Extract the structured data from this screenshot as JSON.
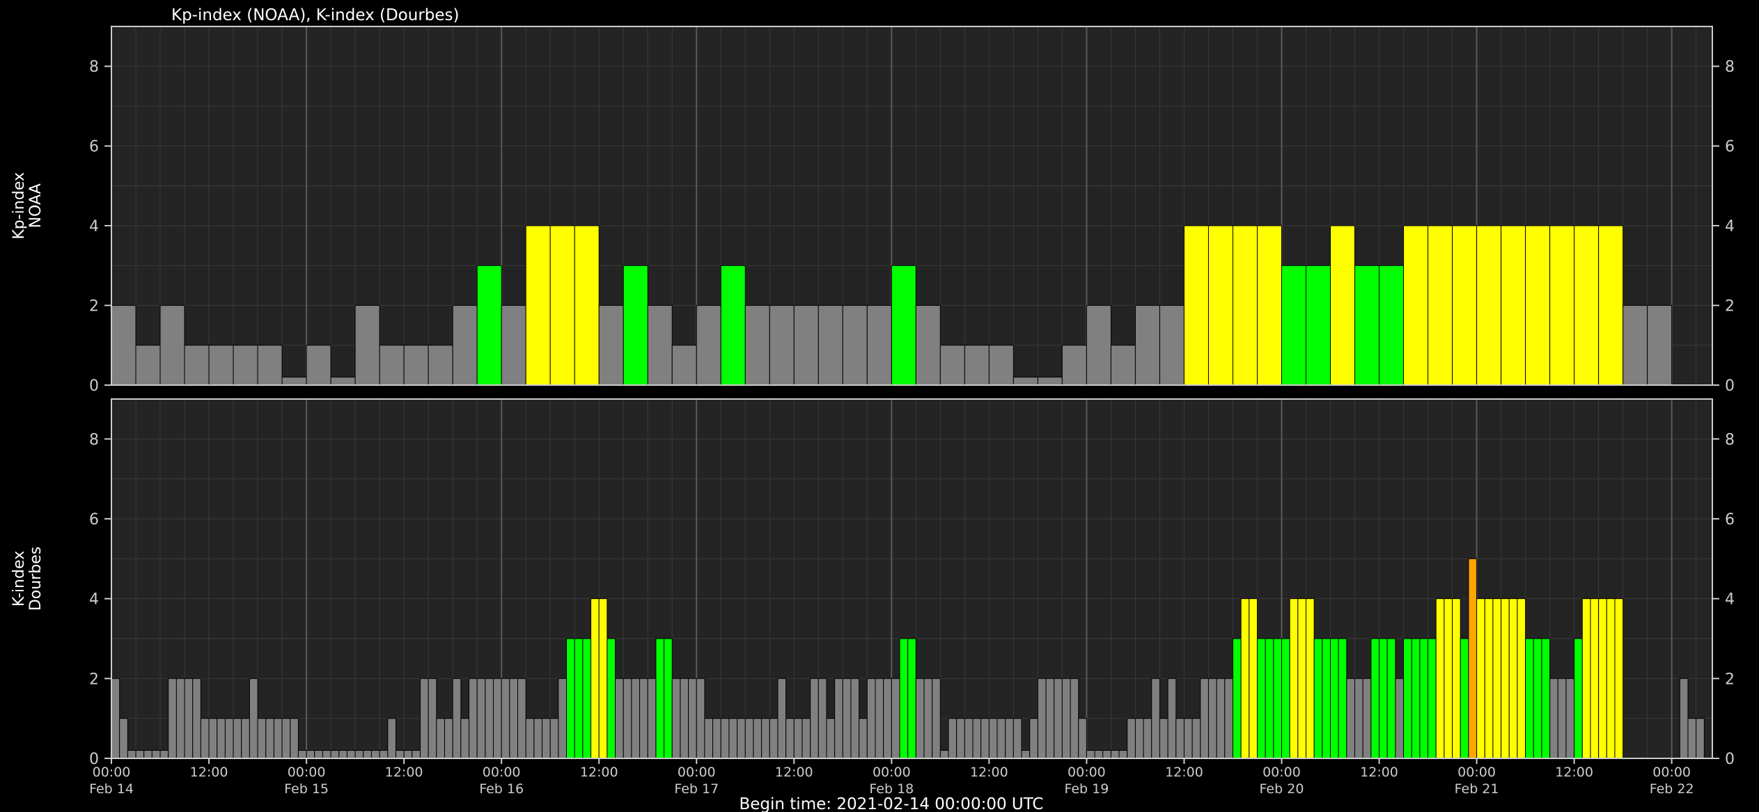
{
  "chart_data": {
    "title": "Kp-index (NOAA), K-index (Dourbes)",
    "footer": "Begin time: 2021-02-14 00:00:00 UTC",
    "start": "2021-02-14T00:00:00Z",
    "end": "2021-02-22T05:00:00Z",
    "colors": {
      "background": "#000000",
      "plot_bg": "#242424",
      "grid": "#3a3a3a",
      "day_line": "#5a5a5a",
      "quiet": "#808080",
      "unsettled": "#00ff00",
      "active": "#ffff00",
      "storm": "#ffa500"
    },
    "x_ticks": [
      {
        "time": "00:00",
        "date": "Feb 14"
      },
      {
        "time": "12:00",
        "date": ""
      },
      {
        "time": "00:00",
        "date": "Feb 15"
      },
      {
        "time": "12:00",
        "date": ""
      },
      {
        "time": "00:00",
        "date": "Feb 16"
      },
      {
        "time": "12:00",
        "date": ""
      },
      {
        "time": "00:00",
        "date": "Feb 17"
      },
      {
        "time": "12:00",
        "date": ""
      },
      {
        "time": "00:00",
        "date": "Feb 18"
      },
      {
        "time": "12:00",
        "date": ""
      },
      {
        "time": "00:00",
        "date": "Feb 19"
      },
      {
        "time": "12:00",
        "date": ""
      },
      {
        "time": "00:00",
        "date": "Feb 20"
      },
      {
        "time": "12:00",
        "date": ""
      },
      {
        "time": "00:00",
        "date": "Feb 21"
      },
      {
        "time": "12:00",
        "date": ""
      },
      {
        "time": "00:00",
        "date": "Feb 22"
      }
    ],
    "panels": [
      {
        "type": "bar",
        "ylabel": [
          "Kp-index",
          "NOAA"
        ],
        "ylim": [
          0,
          9
        ],
        "yticks": [
          0,
          2,
          4,
          6,
          8
        ],
        "interval_hours": 3,
        "values": [
          2,
          1,
          2,
          1,
          1,
          1,
          1,
          0.2,
          1,
          0.2,
          2,
          1,
          1,
          1,
          2,
          3,
          2,
          4,
          4,
          4,
          2,
          3,
          2,
          1,
          2,
          3,
          2,
          2,
          2,
          2,
          2,
          2,
          3,
          2,
          1,
          1,
          1,
          0.2,
          0.2,
          1,
          2,
          1,
          2,
          2,
          4,
          4,
          4,
          4,
          3,
          3,
          4,
          3,
          3,
          4,
          4,
          4,
          4,
          4,
          4,
          4,
          4,
          4,
          2,
          2,
          0
        ]
      },
      {
        "type": "bar",
        "ylabel": [
          "K-index",
          "Dourbes"
        ],
        "ylim": [
          0,
          9
        ],
        "yticks": [
          0,
          2,
          4,
          6,
          8
        ],
        "interval_hours": 1,
        "values": [
          2,
          1,
          0.2,
          0.2,
          0.2,
          0.2,
          0.2,
          2,
          2,
          2,
          2,
          1,
          1,
          1,
          1,
          1,
          1,
          2,
          1,
          1,
          1,
          1,
          1,
          0.2,
          0.2,
          0.2,
          0.2,
          0.2,
          0.2,
          0.2,
          0.2,
          0.2,
          0.2,
          0.2,
          1,
          0.2,
          0.2,
          0.2,
          2,
          2,
          1,
          1,
          2,
          1,
          2,
          2,
          2,
          2,
          2,
          2,
          2,
          1,
          1,
          1,
          1,
          2,
          3,
          3,
          3,
          4,
          4,
          3,
          2,
          2,
          2,
          2,
          2,
          3,
          3,
          2,
          2,
          2,
          2,
          1,
          1,
          1,
          1,
          1,
          1,
          1,
          1,
          1,
          2,
          1,
          1,
          1,
          2,
          2,
          1,
          2,
          2,
          2,
          1,
          2,
          2,
          2,
          2,
          3,
          3,
          2,
          2,
          2,
          0.2,
          1,
          1,
          1,
          1,
          1,
          1,
          1,
          1,
          1,
          0.2,
          1,
          2,
          2,
          2,
          2,
          2,
          1,
          0.2,
          0.2,
          0.2,
          0.2,
          0.2,
          1,
          1,
          1,
          2,
          1,
          2,
          1,
          1,
          1,
          2,
          2,
          2,
          2,
          3,
          4,
          4,
          3,
          3,
          3,
          3,
          4,
          4,
          4,
          3,
          3,
          3,
          3,
          2,
          2,
          2,
          3,
          3,
          3,
          2,
          3,
          3,
          3,
          3,
          4,
          4,
          4,
          3,
          5,
          4,
          4,
          4,
          4,
          4,
          4,
          3,
          3,
          3,
          2,
          2,
          2,
          3,
          4,
          4,
          4,
          4,
          4,
          0,
          0,
          0,
          0,
          0,
          0,
          0,
          2,
          1,
          1,
          0,
          0,
          0,
          0,
          0,
          0
        ]
      }
    ]
  }
}
